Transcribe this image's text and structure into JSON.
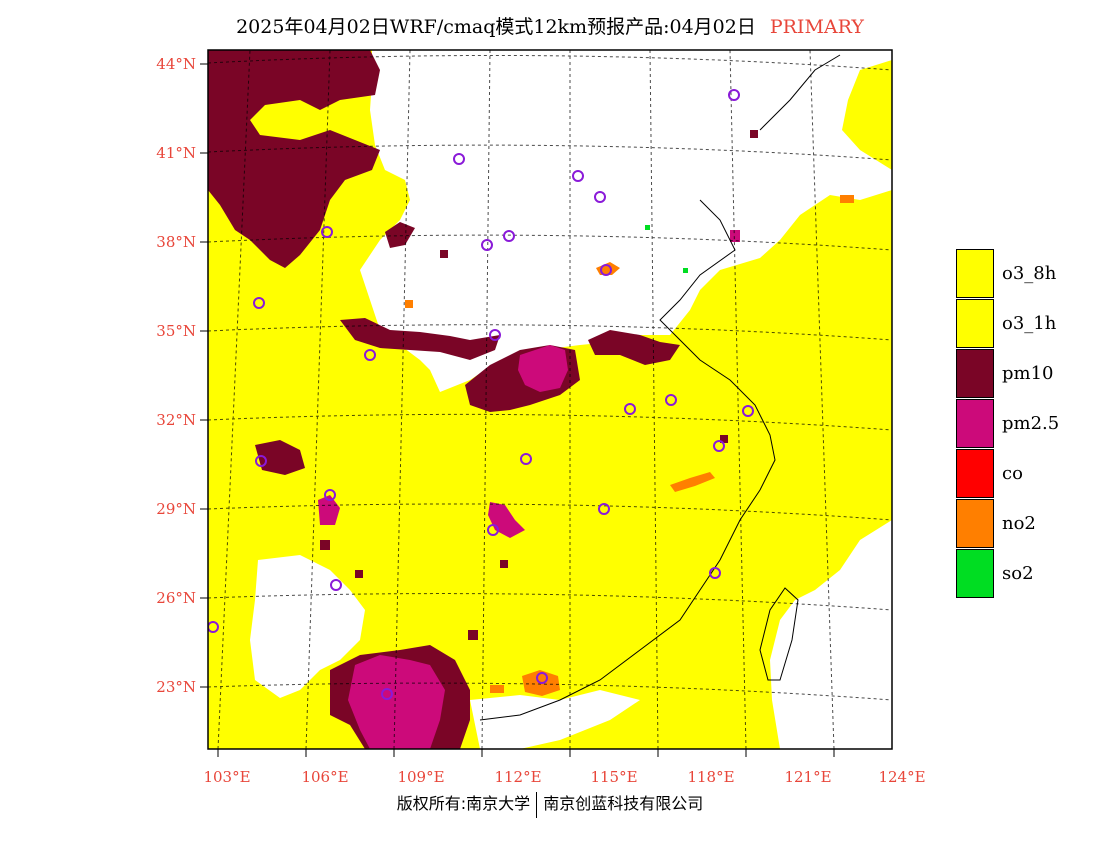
{
  "title": {
    "main": "2025年04月02日WRF/cmaq模式12km预报产品:04月02日",
    "tag": "PRIMARY"
  },
  "map": {
    "lat_labels": [
      "44°N",
      "41°N",
      "38°N",
      "35°N",
      "32°N",
      "29°N",
      "26°N",
      "23°N"
    ],
    "lon_labels": [
      "103°E",
      "106°E",
      "109°E",
      "112°E",
      "115°E",
      "118°E",
      "121°E",
      "124°E"
    ],
    "colors": {
      "o3_8h": "#ffff00",
      "o3_1h": "#ffff00",
      "pm10": "#7a0526",
      "pm25": "#cc0a7a",
      "co": "#ff0000",
      "no2": "#ff7f00",
      "so2": "#00dd22",
      "background": "#ffffff",
      "station_marker": "#8a1ad8"
    }
  },
  "legend": [
    {
      "label": "o3_8h",
      "color": "#ffff00"
    },
    {
      "label": "o3_1h",
      "color": "#ffff00"
    },
    {
      "label": "pm10",
      "color": "#7a0526"
    },
    {
      "label": "pm2.5",
      "color": "#cc0a7a"
    },
    {
      "label": "co",
      "color": "#ff0000"
    },
    {
      "label": "no2",
      "color": "#ff7f00"
    },
    {
      "label": "so2",
      "color": "#00dd22"
    }
  ],
  "copyright": {
    "left": "版权所有:南京大学",
    "right": "南京创蓝科技有限公司"
  }
}
